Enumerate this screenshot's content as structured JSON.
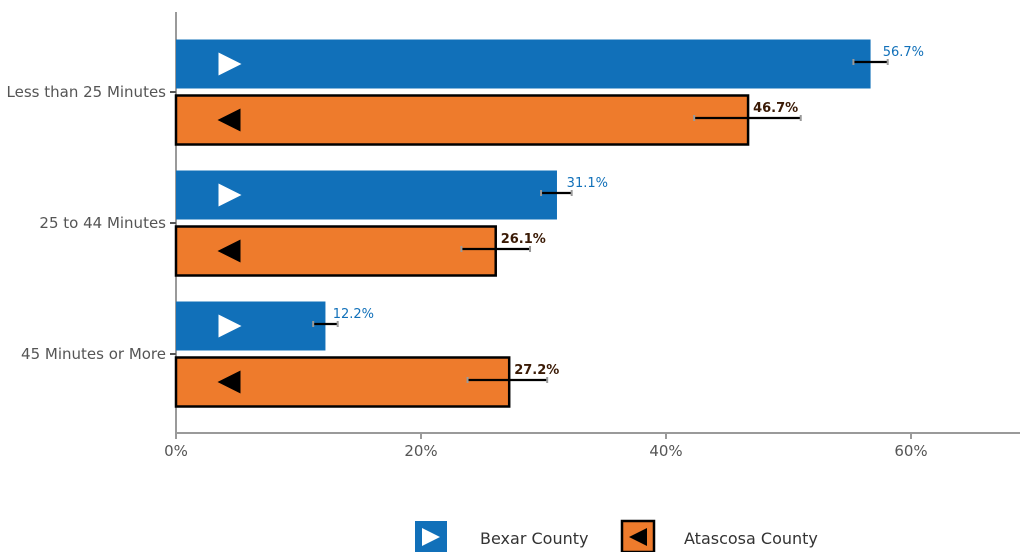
{
  "chart_data": {
    "type": "bar",
    "orientation": "horizontal",
    "categories": [
      "Less than 25 Minutes",
      "25 to 44 Minutes",
      "45 Minutes or More"
    ],
    "series": [
      {
        "name": "Bexar County",
        "values": [
          56.7,
          31.1,
          12.2
        ],
        "labels": [
          "56.7%",
          "31.1%",
          "12.2%"
        ],
        "error_low": [
          55.3,
          29.8,
          11.2
        ],
        "error_high": [
          58.1,
          32.3,
          13.2
        ],
        "color": "#1170B9",
        "label_color": "#1170B9",
        "marker": "triangle-right",
        "marker_color": "#ffffff",
        "outlined": false
      },
      {
        "name": "Atascosa County",
        "values": [
          46.7,
          26.1,
          27.2
        ],
        "labels": [
          "46.7%",
          "26.1%",
          "27.2%"
        ],
        "error_low": [
          42.3,
          23.3,
          23.8
        ],
        "error_high": [
          51.0,
          28.9,
          30.3
        ],
        "color": "#EE7B2C",
        "label_color": "#3a1a05",
        "marker": "triangle-left",
        "marker_color": "#000000",
        "outlined": true
      }
    ],
    "x_ticks": [
      "0%",
      "20%",
      "40%",
      "60%"
    ],
    "x_tick_values": [
      0,
      20,
      40,
      60
    ],
    "xlim": [
      0,
      69
    ],
    "xlabel": "",
    "ylabel": "",
    "grid": false,
    "legend_position": "bottom"
  }
}
